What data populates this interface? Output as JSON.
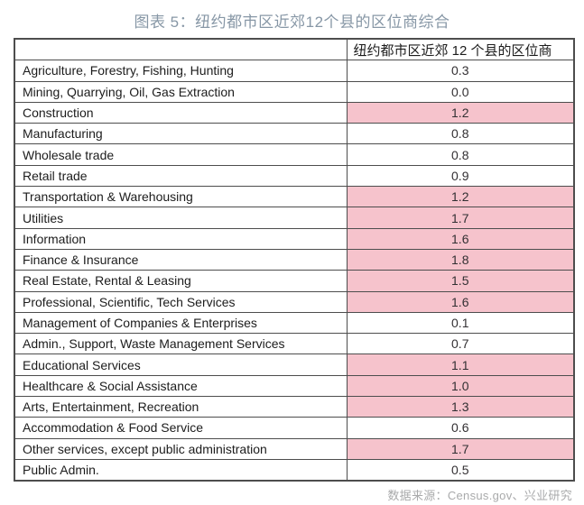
{
  "title": "图表 5：纽约都市区近郊12个县的区位商综合",
  "colors": {
    "title_text": "#8797a6",
    "highlight_pink": "#f6c3cc",
    "table_border": "#4d4d4d",
    "source_text": "#a9aaab"
  },
  "table": {
    "corner_header": "",
    "value_header": "纽约都市区近郊 12 个县的区位商"
  },
  "chart_data": {
    "type": "table",
    "title": "图表 5：纽约都市区近郊12个县的区位商综合",
    "columns": [
      "",
      "纽约都市区近郊 12 个县的区位商"
    ],
    "rows": [
      {
        "label": "Agriculture, Forestry, Fishing, Hunting",
        "value": "0.3",
        "highlighted": false
      },
      {
        "label": "Mining, Quarrying, Oil, Gas Extraction",
        "value": "0.0",
        "highlighted": false
      },
      {
        "label": "Construction",
        "value": "1.2",
        "highlighted": true
      },
      {
        "label": "Manufacturing",
        "value": "0.8",
        "highlighted": false
      },
      {
        "label": "Wholesale trade",
        "value": "0.8",
        "highlighted": false
      },
      {
        "label": "Retail trade",
        "value": "0.9",
        "highlighted": false
      },
      {
        "label": "Transportation & Warehousing",
        "value": "1.2",
        "highlighted": true
      },
      {
        "label": "Utilities",
        "value": "1.7",
        "highlighted": true
      },
      {
        "label": "Information",
        "value": "1.6",
        "highlighted": true
      },
      {
        "label": "Finance & Insurance",
        "value": "1.8",
        "highlighted": true
      },
      {
        "label": "Real Estate, Rental & Leasing",
        "value": "1.5",
        "highlighted": true
      },
      {
        "label": "Professional, Scientific, Tech Services",
        "value": "1.6",
        "highlighted": true
      },
      {
        "label": "Management of Companies & Enterprises",
        "value": "0.1",
        "highlighted": false
      },
      {
        "label": "Admin., Support, Waste Management Services",
        "value": "0.7",
        "highlighted": false
      },
      {
        "label": "Educational Services",
        "value": "1.1",
        "highlighted": true
      },
      {
        "label": "Healthcare & Social Assistance",
        "value": "1.0",
        "highlighted": true
      },
      {
        "label": "Arts, Entertainment, Recreation",
        "value": "1.3",
        "highlighted": true
      },
      {
        "label": "Accommodation & Food Service",
        "value": "0.6",
        "highlighted": false
      },
      {
        "label": "Other services, except public administration",
        "value": "1.7",
        "highlighted": true
      },
      {
        "label": "Public Admin.",
        "value": "0.5",
        "highlighted": false
      }
    ]
  },
  "footer": {
    "source": "数据来源：Census.gov、兴业研究"
  }
}
